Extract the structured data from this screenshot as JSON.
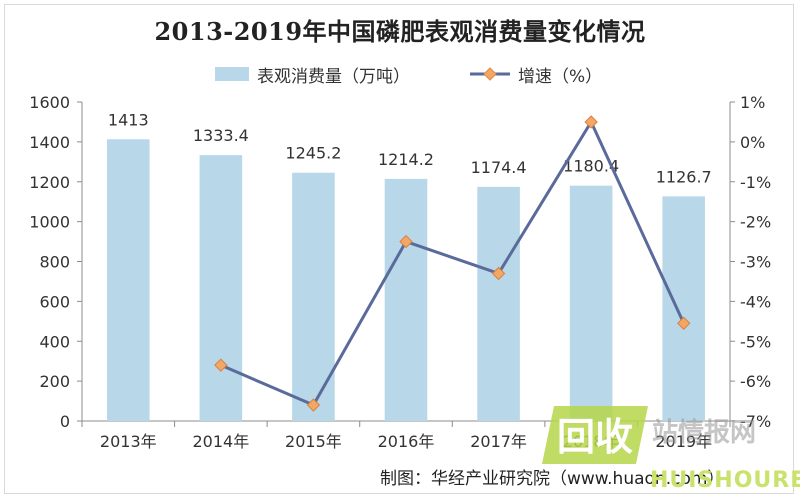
{
  "chart_data": {
    "type": "bar",
    "title": "2013-2019年中国磷肥表观消费量变化情况",
    "categories": [
      "2013年",
      "2014年",
      "2015年",
      "2016年",
      "2017年",
      "2018年",
      "2019年"
    ],
    "series": [
      {
        "name": "表观消费量（万吨）",
        "type": "bar",
        "axis": "left",
        "values": [
          1413,
          1333.4,
          1245.2,
          1214.2,
          1174.4,
          1180.4,
          1126.7
        ],
        "labels": [
          "1413",
          "1333.4",
          "1245.2",
          "1214.2",
          "1174.4",
          "1180.4",
          "1126.7"
        ],
        "color": "#b8d7e9"
      },
      {
        "name": "增速（%）",
        "type": "line",
        "axis": "right",
        "values": [
          null,
          -5.6,
          -6.6,
          -2.5,
          -3.3,
          0.5,
          -4.55
        ],
        "color": "#5a6a9a",
        "marker_color": "#f2a765"
      }
    ],
    "y_left": {
      "min": 0,
      "max": 1600,
      "step": 200,
      "ticks": [
        "0",
        "200",
        "400",
        "600",
        "800",
        "1000",
        "1200",
        "1400",
        "1600"
      ]
    },
    "y_right": {
      "min": -7,
      "max": 1,
      "step": 1,
      "ticks": [
        "-7%",
        "-6%",
        "-5%",
        "-4%",
        "-3%",
        "-2%",
        "-1%",
        "0%",
        "1%"
      ]
    },
    "grid": false,
    "legend": "top"
  },
  "credit": "制图：华经产业研究院（www.huaon.com）",
  "watermark": {
    "logo_text": "回收",
    "text": "站情报网",
    "sub": "HUISHOUREN"
  }
}
